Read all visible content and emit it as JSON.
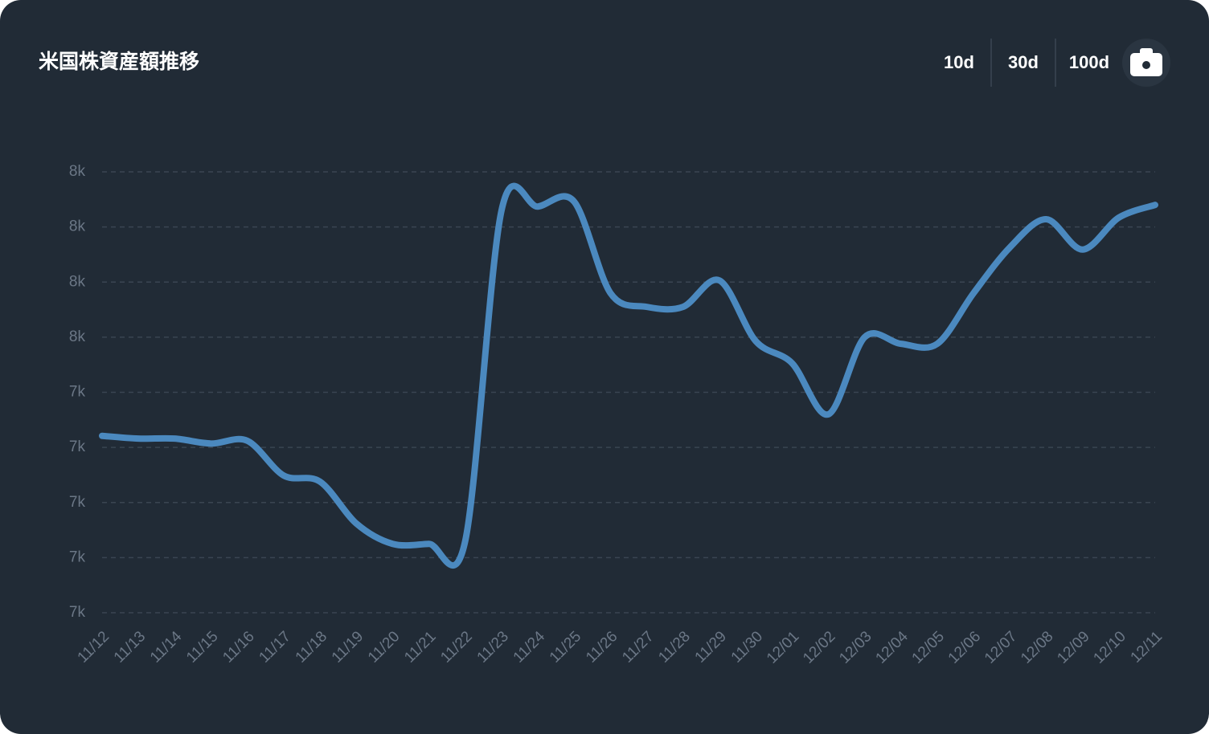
{
  "chart_data": {
    "type": "line",
    "title": "米国株資産額推移",
    "buttons": [
      "10d",
      "30d",
      "100d"
    ],
    "categories": [
      "11/12",
      "11/13",
      "11/14",
      "11/15",
      "11/16",
      "11/17",
      "11/18",
      "11/19",
      "11/20",
      "11/21",
      "11/22",
      "11/23",
      "11/24",
      "11/25",
      "11/26",
      "11/27",
      "11/28",
      "11/29",
      "11/30",
      "12/01",
      "12/02",
      "12/03",
      "12/04",
      "12/05",
      "12/06",
      "12/07",
      "12/08",
      "12/09",
      "12/10",
      "12/11"
    ],
    "series": [
      {
        "color": "#4b89bf",
        "values": [
          7321,
          7316,
          7316,
          7307,
          7312,
          7249,
          7238,
          7162,
          7125,
          7125,
          7130,
          7730,
          7737,
          7746,
          7580,
          7555,
          7555,
          7603,
          7493,
          7453,
          7360,
          7500,
          7488,
          7488,
          7580,
          7663,
          7714,
          7659,
          7717,
          7740
        ]
      }
    ],
    "ylim": [
      7000,
      7800
    ],
    "yticks": [
      {
        "value": 7000,
        "label": "7k"
      },
      {
        "value": 7100,
        "label": "7k"
      },
      {
        "value": 7200,
        "label": "7k"
      },
      {
        "value": 7300,
        "label": "7k"
      },
      {
        "value": 7400,
        "label": "7k"
      },
      {
        "value": 7500,
        "label": "8k"
      },
      {
        "value": 7600,
        "label": "8k"
      },
      {
        "value": 7700,
        "label": "8k"
      },
      {
        "value": 7800,
        "label": "8k"
      }
    ],
    "grid": true
  }
}
